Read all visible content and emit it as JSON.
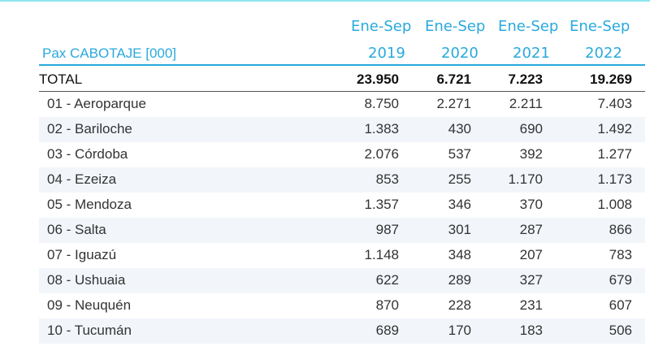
{
  "table": {
    "title": "Pax CABOTAJE [000]",
    "columns": [
      {
        "period": "Ene-Sep",
        "year": "2019"
      },
      {
        "period": "Ene-Sep",
        "year": "2020"
      },
      {
        "period": "Ene-Sep",
        "year": "2021"
      },
      {
        "period": "Ene-Sep",
        "year": "2022"
      }
    ],
    "total": {
      "label": "TOTAL",
      "values": [
        "23.950",
        "6.721",
        "7.223",
        "19.269"
      ]
    },
    "rows": [
      {
        "label": "01 - Aeroparque",
        "values": [
          "8.750",
          "2.271",
          "2.211",
          "7.403"
        ]
      },
      {
        "label": "02 - Bariloche",
        "values": [
          "1.383",
          "430",
          "690",
          "1.492"
        ]
      },
      {
        "label": "03 - Córdoba",
        "values": [
          "2.076",
          "537",
          "392",
          "1.277"
        ]
      },
      {
        "label": "04 - Ezeiza",
        "values": [
          "853",
          "255",
          "1.170",
          "1.173"
        ]
      },
      {
        "label": "05 - Mendoza",
        "values": [
          "1.357",
          "346",
          "370",
          "1.008"
        ]
      },
      {
        "label": "06 - Salta",
        "values": [
          "987",
          "301",
          "287",
          "866"
        ]
      },
      {
        "label": "07 - Iguazú",
        "values": [
          "1.148",
          "348",
          "207",
          "783"
        ]
      },
      {
        "label": "08 - Ushuaia",
        "values": [
          "622",
          "289",
          "327",
          "679"
        ]
      },
      {
        "label": "09 - Neuquén",
        "values": [
          "870",
          "228",
          "231",
          "607"
        ]
      },
      {
        "label": "10 - Tucumán",
        "values": [
          "689",
          "170",
          "183",
          "506"
        ]
      }
    ]
  },
  "colors": {
    "accent": "#29a9dc",
    "alt_row": "#f2f6fb",
    "top_rule": "#8ee6ee"
  }
}
